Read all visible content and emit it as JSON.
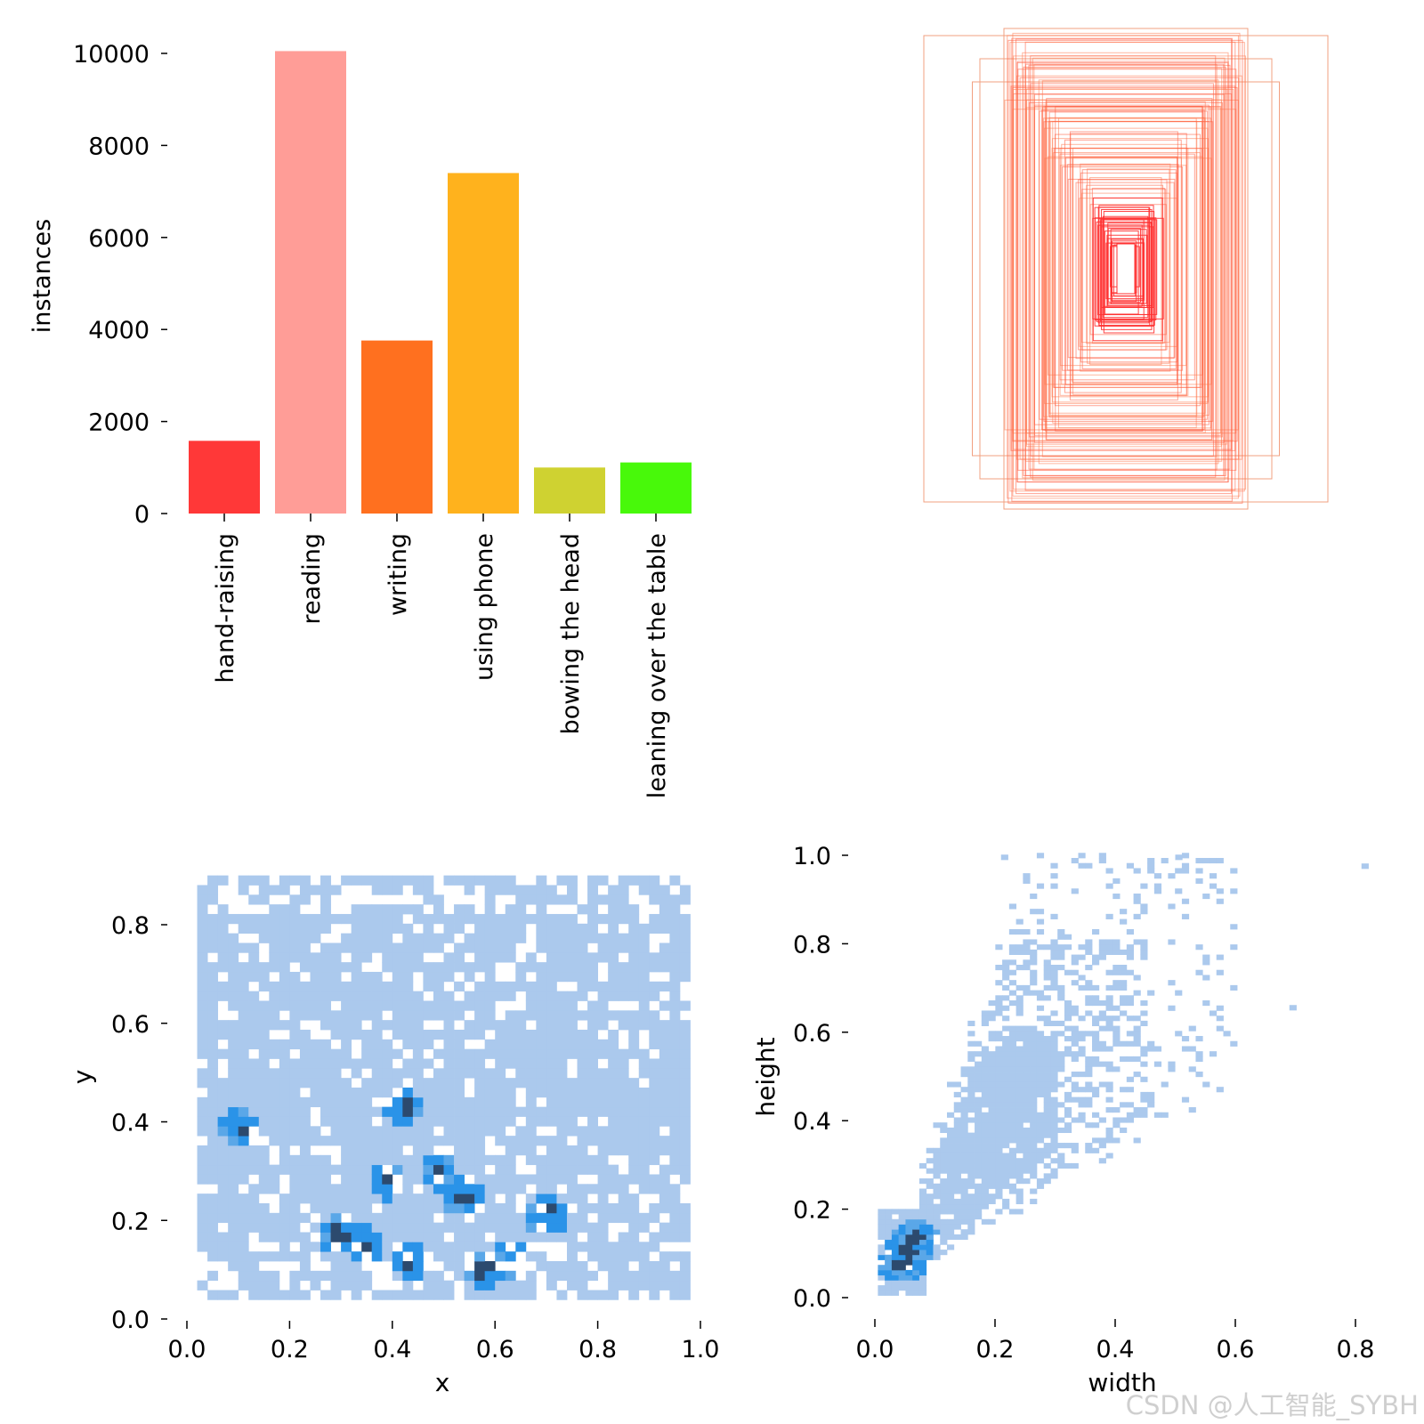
{
  "chart_data": [
    {
      "type": "bar",
      "title": "",
      "xlabel": "",
      "ylabel": "instances",
      "ylim": [
        0,
        10000
      ],
      "yticks": [
        0,
        2000,
        4000,
        6000,
        8000,
        10000
      ],
      "yticklabels": [
        "0",
        "2000",
        "4000",
        "6000",
        "8000",
        "10000"
      ],
      "categories": [
        "hand-raising",
        "reading",
        "writing",
        "using phone",
        "bowing the head",
        "leaning over the table"
      ],
      "values": [
        1580,
        10050,
        3760,
        7400,
        1000,
        1110
      ],
      "colors": [
        "#ff3838",
        "#ff9d97",
        "#ff701f",
        "#ffb21d",
        "#cfd231",
        "#48f90a"
      ]
    },
    {
      "type": "rectangles",
      "description": "overlay of normalized label bounding boxes centered on the image",
      "box_color": "#ff3838",
      "box_count": 120
    },
    {
      "type": "heatmap",
      "xlabel": "x",
      "ylabel": "y",
      "xlim": [
        0,
        1
      ],
      "ylim": [
        0,
        0.9
      ],
      "xticks": [
        0,
        0.2,
        0.4,
        0.6,
        0.8,
        1.0
      ],
      "xticklabels": [
        "0.0",
        "0.2",
        "0.4",
        "0.6",
        "0.8",
        "1.0"
      ],
      "yticks": [
        0,
        0.2,
        0.4,
        0.6,
        0.8
      ],
      "yticklabels": [
        "0.0",
        "0.2",
        "0.4",
        "0.6",
        "0.8"
      ],
      "data_extent": {
        "x": [
          0.03,
          0.97
        ],
        "y": [
          0.04,
          0.91
        ]
      },
      "hotspots": [
        [
          0.35,
          0.15
        ],
        [
          0.39,
          0.28
        ],
        [
          0.44,
          0.12
        ],
        [
          0.58,
          0.1
        ],
        [
          0.63,
          0.12
        ],
        [
          0.1,
          0.39
        ],
        [
          0.42,
          0.43
        ],
        [
          0.49,
          0.3
        ],
        [
          0.54,
          0.25
        ],
        [
          0.7,
          0.21
        ],
        [
          0.3,
          0.17
        ]
      ]
    },
    {
      "type": "heatmap",
      "xlabel": "width",
      "ylabel": "height",
      "xlim": [
        0,
        0.83
      ],
      "ylim": [
        0,
        1.0
      ],
      "xticks": [
        0,
        0.2,
        0.4,
        0.6,
        0.8
      ],
      "xticklabels": [
        "0.0",
        "0.2",
        "0.4",
        "0.6",
        "0.8"
      ],
      "yticks": [
        0,
        0.2,
        0.4,
        0.6,
        0.8,
        1.0
      ],
      "yticklabels": [
        "0.0",
        "0.2",
        "0.4",
        "0.6",
        "0.8",
        "1.0"
      ],
      "data_extent": {
        "width": [
          0.0,
          0.83
        ],
        "height": [
          0.0,
          1.0
        ]
      },
      "hotspots": [
        [
          0.04,
          0.07
        ],
        [
          0.05,
          0.1
        ],
        [
          0.06,
          0.13
        ]
      ]
    }
  ],
  "watermark": "CSDN @人工智能_SYBH",
  "colors": {
    "heat_light": "#abc9ed",
    "heat_mid": "#5aa7e8",
    "heat_bright": "#2a93e8",
    "heat_dark": "#2c4a6e"
  }
}
